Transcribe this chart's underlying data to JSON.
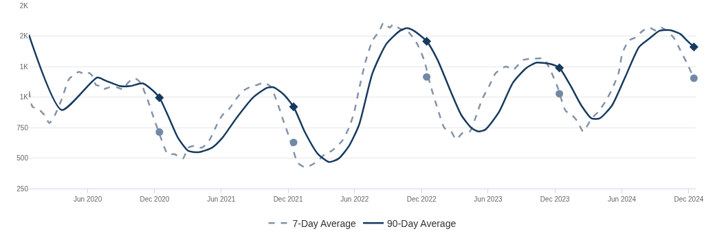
{
  "chart_data": {
    "type": "line",
    "xlim": [
      "2019-12-23",
      "2024-12-20"
    ],
    "ylim": [
      250,
      1750
    ],
    "xticks": [
      {
        "value": "2020-06-01",
        "label": "Jun 2020"
      },
      {
        "value": "2020-12-01",
        "label": "Dec 2020"
      },
      {
        "value": "2021-06-01",
        "label": "Jun 2021"
      },
      {
        "value": "2021-12-01",
        "label": "Dec 2021"
      },
      {
        "value": "2022-06-01",
        "label": "Jun 2022"
      },
      {
        "value": "2022-12-01",
        "label": "Dec 2022"
      },
      {
        "value": "2023-06-01",
        "label": "Jun 2023"
      },
      {
        "value": "2023-12-01",
        "label": "Dec 2023"
      },
      {
        "value": "2024-06-01",
        "label": "Jun 2024"
      },
      {
        "value": "2024-12-01",
        "label": "Dec 2024"
      }
    ],
    "yticks": [
      250,
      500,
      750,
      {
        "value": 1000,
        "label": "1K"
      },
      {
        "value": 1250,
        "label": "1K"
      },
      {
        "value": 1500,
        "label": "2K"
      },
      {
        "value": 1750,
        "label": "2K"
      }
    ],
    "grid": "y",
    "legend": "bottom",
    "series": [
      {
        "name": "7-Day Average",
        "color": "#8393a8",
        "line_style": "dashed",
        "x": [
          "2019-12-23",
          "2020-01-02",
          "2020-01-17",
          "2020-02-04",
          "2020-02-17",
          "2020-03-03",
          "2020-03-22",
          "2020-04-10",
          "2020-04-19",
          "2020-05-08",
          "2020-05-23",
          "2020-06-05",
          "2020-06-14",
          "2020-06-23",
          "2020-07-03",
          "2020-07-12",
          "2020-07-31",
          "2020-08-19",
          "2020-09-06",
          "2020-09-19",
          "2020-10-08",
          "2020-10-23",
          "2020-11-11",
          "2020-11-29",
          "2020-12-18",
          "2021-01-06",
          "2021-01-24",
          "2021-02-16",
          "2021-03-03",
          "2021-03-21",
          "2021-04-09",
          "2021-04-28",
          "2021-05-20",
          "2021-06-04",
          "2021-06-23",
          "2021-07-12",
          "2021-07-30",
          "2021-08-18",
          "2021-09-09",
          "2021-09-24",
          "2021-10-13",
          "2021-11-01",
          "2021-11-19",
          "2021-12-08",
          "2021-12-27",
          "2022-01-15",
          "2022-02-02",
          "2022-02-21",
          "2022-03-12",
          "2022-03-30",
          "2022-04-27",
          "2022-05-16",
          "2022-05-31",
          "2022-06-13",
          "2022-07-02",
          "2022-07-20",
          "2022-08-08",
          "2022-08-19",
          "2022-09-05",
          "2022-09-15",
          "2022-10-03",
          "2022-10-22",
          "2022-10-31",
          "2022-11-19",
          "2022-12-08",
          "2022-12-26",
          "2023-01-14",
          "2023-02-02",
          "2023-02-20",
          "2023-03-05",
          "2023-03-24",
          "2023-04-12",
          "2023-04-27",
          "2023-05-16",
          "2023-06-04",
          "2023-06-22",
          "2023-07-20",
          "2023-08-08",
          "2023-09-05",
          "2023-10-03",
          "2023-10-31",
          "2023-11-18",
          "2023-12-07",
          "2023-12-30",
          "2024-01-17",
          "2024-02-01",
          "2024-02-16",
          "2024-03-10",
          "2024-03-28",
          "2024-04-16",
          "2024-05-05",
          "2024-05-23",
          "2024-06-02",
          "2024-06-20",
          "2024-07-09",
          "2024-07-28",
          "2024-08-15",
          "2024-09-03",
          "2024-09-16",
          "2024-10-01",
          "2024-10-20",
          "2024-11-08",
          "2024-11-26",
          "2024-12-15"
        ],
        "values": [
          1048,
          920,
          904,
          851,
          787,
          851,
          984,
          1144,
          1170,
          1207,
          1186,
          1197,
          1170,
          1101,
          1090,
          1064,
          1080,
          1080,
          1064,
          1117,
          1154,
          1117,
          984,
          825,
          665,
          532,
          532,
          495,
          585,
          601,
          585,
          638,
          771,
          851,
          904,
          984,
          1048,
          1080,
          1101,
          1117,
          1090,
          958,
          798,
          638,
          463,
          426,
          442,
          479,
          532,
          559,
          638,
          745,
          878,
          1064,
          1303,
          1463,
          1543,
          1607,
          1569,
          1596,
          1559,
          1543,
          1516,
          1436,
          1303,
          1090,
          904,
          745,
          718,
          654,
          707,
          718,
          825,
          984,
          1090,
          1197,
          1250,
          1223,
          1303,
          1314,
          1314,
          1223,
          1090,
          888,
          851,
          798,
          718,
          825,
          878,
          958,
          1064,
          1197,
          1356,
          1463,
          1489,
          1543,
          1569,
          1543,
          1569,
          1543,
          1489,
          1383,
          1276,
          1154
        ]
      },
      {
        "name": "90-Day Average",
        "color": "#163a5f",
        "line_style": "solid",
        "x": [
          "2019-12-23",
          "2020-03-22",
          "2020-06-27",
          "2020-07-21",
          "2020-08-28",
          "2020-09-25",
          "2020-10-29",
          "2020-11-20",
          "2020-12-14",
          "2021-01-06",
          "2021-02-03",
          "2021-03-03",
          "2021-03-31",
          "2021-05-07",
          "2021-06-04",
          "2021-07-12",
          "2021-08-27",
          "2021-10-04",
          "2021-10-22",
          "2021-11-19",
          "2021-12-16",
          "2022-01-15",
          "2022-02-21",
          "2022-03-23",
          "2022-04-18",
          "2022-05-16",
          "2022-06-13",
          "2022-07-20",
          "2022-08-27",
          "2022-10-03",
          "2022-10-22",
          "2022-11-10",
          "2022-12-15",
          "2023-01-14",
          "2023-02-20",
          "2023-03-20",
          "2023-04-17",
          "2023-05-06",
          "2023-05-25",
          "2023-07-01",
          "2023-08-08",
          "2023-09-14",
          "2023-10-12",
          "2023-11-18",
          "2023-12-13",
          "2024-01-13",
          "2024-02-11",
          "2024-03-10",
          "2024-04-01",
          "2024-05-05",
          "2024-06-11",
          "2024-07-18",
          "2024-08-15",
          "2024-09-12",
          "2024-10-11",
          "2024-11-08",
          "2024-11-26",
          "2024-12-15"
        ],
        "values": [
          1511,
          894,
          1160,
          1133,
          1090,
          1090,
          1112,
          1069,
          995,
          851,
          665,
          559,
          548,
          585,
          665,
          825,
          995,
          1075,
          1080,
          1021,
          920,
          718,
          532,
          468,
          495,
          596,
          771,
          1197,
          1436,
          1543,
          1564,
          1543,
          1457,
          1303,
          1037,
          851,
          745,
          718,
          734,
          878,
          1117,
          1239,
          1282,
          1271,
          1239,
          1090,
          931,
          825,
          825,
          931,
          1170,
          1410,
          1479,
          1543,
          1548,
          1516,
          1463,
          1410
        ]
      },
      {
        "type": "scatter",
        "marker": "circle",
        "color": "#7189a6",
        "x": [
          "2020-12-14",
          "2021-12-16",
          "2022-12-15",
          "2023-12-13",
          "2024-12-15"
        ],
        "values": [
          713,
          628,
          1165,
          1027,
          1154
        ]
      },
      {
        "type": "scatter",
        "marker": "diamond",
        "color": "#163a5f",
        "x": [
          "2020-12-14",
          "2021-12-16",
          "2022-12-15",
          "2023-12-13",
          "2024-12-15"
        ],
        "values": [
          995,
          920,
          1457,
          1239,
          1410
        ]
      }
    ]
  }
}
